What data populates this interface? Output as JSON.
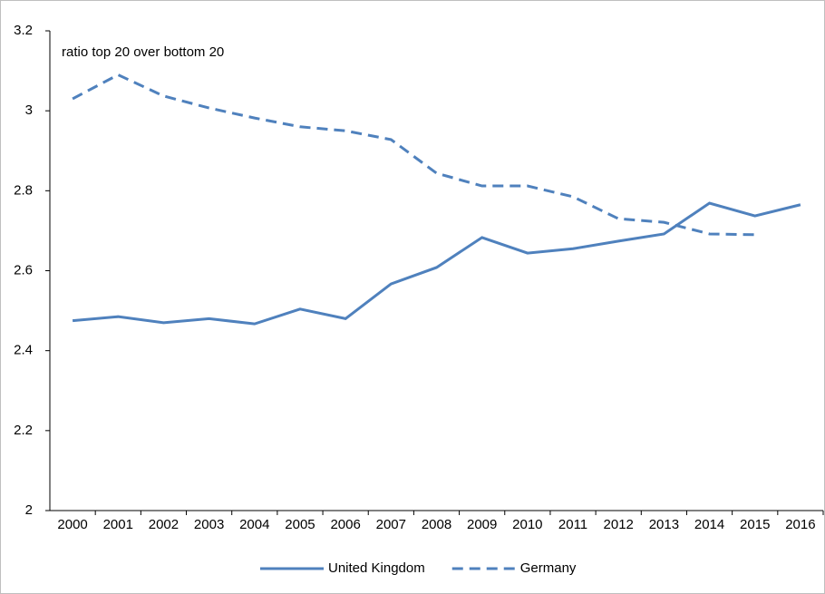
{
  "chart_data": {
    "type": "line",
    "annotation": "ratio top 20 over bottom 20",
    "categories": [
      "2000",
      "2001",
      "2002",
      "2003",
      "2004",
      "2005",
      "2006",
      "2007",
      "2008",
      "2009",
      "2010",
      "2011",
      "2012",
      "2013",
      "2014",
      "2015",
      "2016"
    ],
    "series": [
      {
        "name": "United Kingdom",
        "color": "#4f81bd",
        "dash": "solid",
        "values": [
          2.475,
          2.485,
          2.47,
          2.48,
          2.467,
          2.504,
          2.48,
          2.567,
          2.608,
          2.683,
          2.644,
          2.655,
          2.674,
          2.692,
          2.769,
          2.737,
          2.765
        ]
      },
      {
        "name": "Germany",
        "color": "#4f81bd",
        "dash": "dashed",
        "values": [
          3.03,
          3.09,
          3.037,
          3.007,
          2.982,
          2.96,
          2.95,
          2.928,
          2.844,
          2.812,
          2.812,
          2.785,
          2.73,
          2.721,
          2.692,
          2.69,
          null
        ]
      }
    ],
    "ylim": [
      2,
      3.2
    ],
    "yticks": [
      2,
      2.2,
      2.4,
      2.6,
      2.8,
      3,
      3.2
    ],
    "grid": false,
    "legend": "bottom"
  }
}
